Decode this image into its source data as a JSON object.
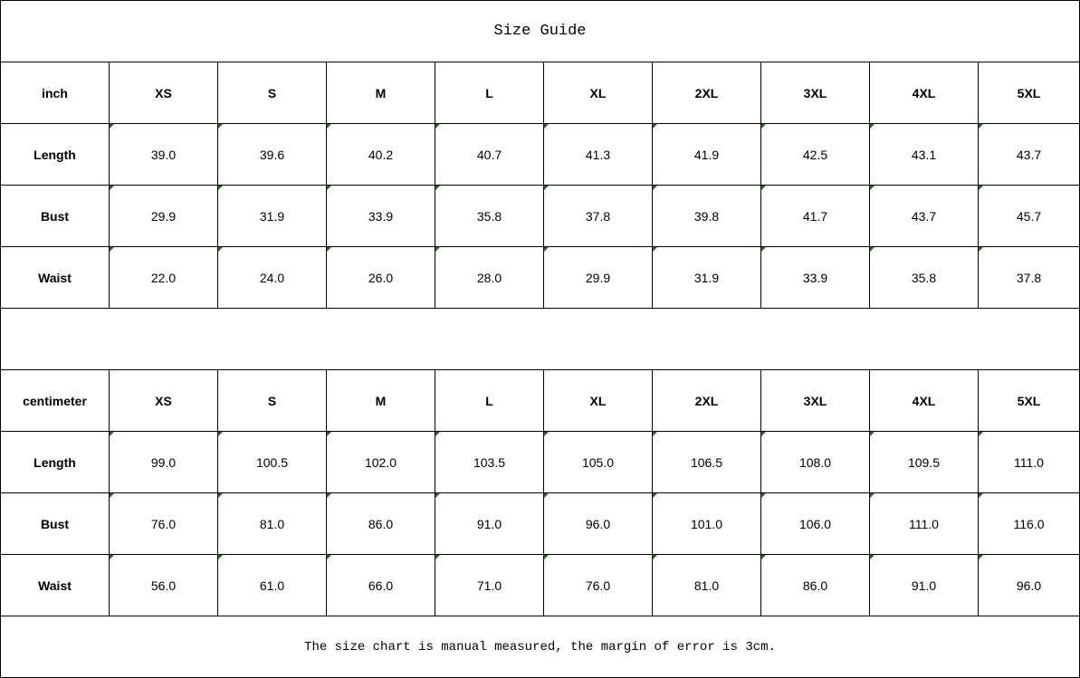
{
  "title": "Size Guide",
  "tables": [
    {
      "unit": "inch",
      "sizes": [
        "XS",
        "S",
        "M",
        "L",
        "XL",
        "2XL",
        "3XL",
        "4XL",
        "5XL"
      ],
      "rows": [
        {
          "label": "Length",
          "values": [
            "39.0",
            "39.6",
            "40.2",
            "40.7",
            "41.3",
            "41.9",
            "42.5",
            "43.1",
            "43.7"
          ]
        },
        {
          "label": "Bust",
          "values": [
            "29.9",
            "31.9",
            "33.9",
            "35.8",
            "37.8",
            "39.8",
            "41.7",
            "43.7",
            "45.7"
          ]
        },
        {
          "label": "Waist",
          "values": [
            "22.0",
            "24.0",
            "26.0",
            "28.0",
            "29.9",
            "31.9",
            "33.9",
            "35.8",
            "37.8"
          ]
        }
      ]
    },
    {
      "unit": "centimeter",
      "sizes": [
        "XS",
        "S",
        "M",
        "L",
        "XL",
        "2XL",
        "3XL",
        "4XL",
        "5XL"
      ],
      "rows": [
        {
          "label": "Length",
          "values": [
            "99.0",
            "100.5",
            "102.0",
            "103.5",
            "105.0",
            "106.5",
            "108.0",
            "109.5",
            "111.0"
          ]
        },
        {
          "label": "Bust",
          "values": [
            "76.0",
            "81.0",
            "86.0",
            "91.0",
            "96.0",
            "101.0",
            "106.0",
            "111.0",
            "116.0"
          ]
        },
        {
          "label": "Waist",
          "values": [
            "56.0",
            "61.0",
            "66.0",
            "71.0",
            "76.0",
            "81.0",
            "86.0",
            "91.0",
            "96.0"
          ]
        }
      ]
    }
  ],
  "note": "The size chart is manual measured, the margin of error is 3cm.",
  "colors": {
    "border": "#000000",
    "cell_marker": "#008000"
  }
}
